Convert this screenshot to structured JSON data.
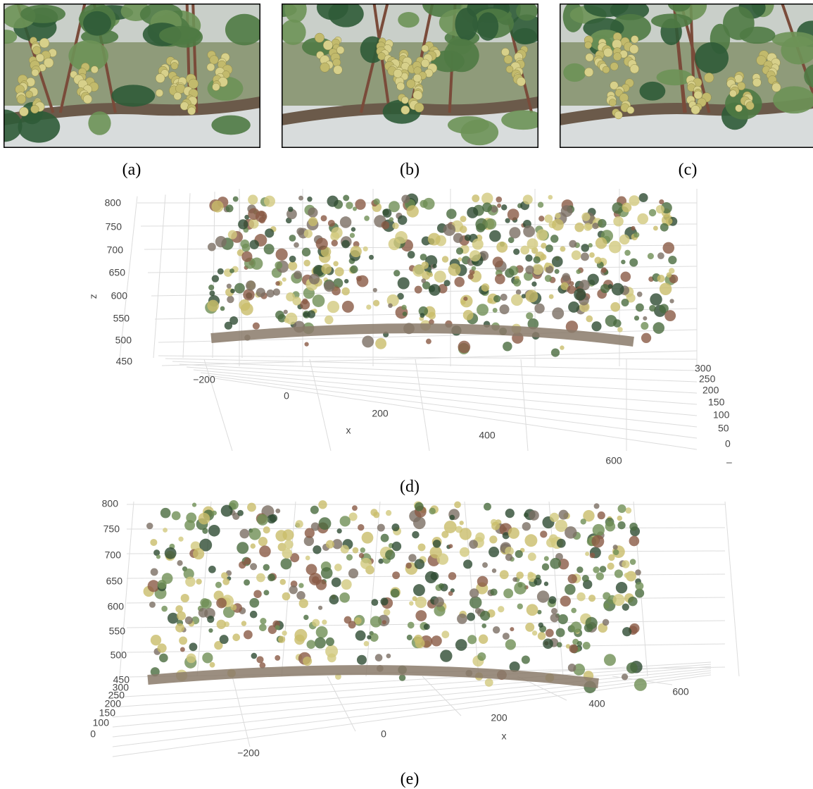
{
  "figure": {
    "photos": [
      {
        "label": "(a)"
      },
      {
        "label": "(b)"
      },
      {
        "label": "(c)"
      }
    ],
    "plots": [
      {
        "label": "(d)",
        "x_title": "x",
        "z_title": "z",
        "z_ticks": [
          "800",
          "750",
          "700",
          "650",
          "600",
          "550",
          "500",
          "450"
        ],
        "x_ticks": [
          "−200",
          "0",
          "200",
          "400",
          "600"
        ],
        "y_ticks": [
          "300",
          "250",
          "200",
          "150",
          "100",
          "50",
          "0",
          "–"
        ]
      },
      {
        "label": "(e)",
        "x_title": "x",
        "z_ticks": [
          "800",
          "750",
          "700",
          "650",
          "600",
          "550",
          "500",
          "450"
        ],
        "x_ticks": [
          "−200",
          "0",
          "200",
          "400",
          "600"
        ],
        "y_ticks": [
          "300",
          "250",
          "200",
          "150",
          "100",
          "0"
        ]
      }
    ]
  }
}
